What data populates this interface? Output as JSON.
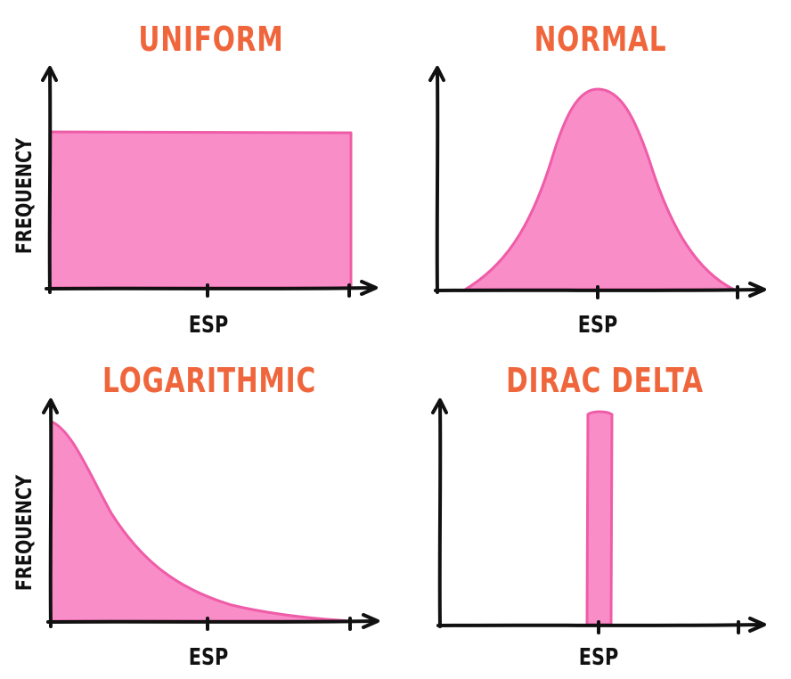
{
  "colors": {
    "title": "#f0663c",
    "fill": "#f98dc8",
    "stroke": "#ef5ca8",
    "axis": "#111111",
    "text": "#111111"
  },
  "panels": [
    {
      "title": "UNIFORM",
      "xlabel": "ESP",
      "ylabel": "FREQUENCY",
      "shape": "uniform"
    },
    {
      "title": "NORMAL",
      "xlabel": "ESP",
      "ylabel": "",
      "shape": "normal"
    },
    {
      "title": "LOGARITHMIC",
      "xlabel": "ESP",
      "ylabel": "FREQUENCY",
      "shape": "logarithmic"
    },
    {
      "title": "DIRAC DELTA",
      "xlabel": "ESP",
      "ylabel": "",
      "shape": "dirac-delta"
    }
  ]
}
